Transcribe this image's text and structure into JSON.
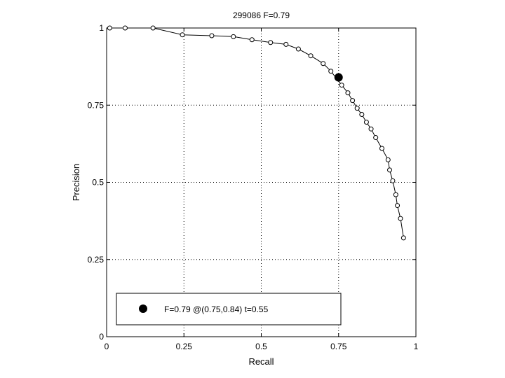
{
  "chart_data": {
    "type": "line",
    "title": "299086 F=0.79",
    "xlabel": "Recall",
    "ylabel": "Precision",
    "xlim": [
      0,
      1
    ],
    "ylim": [
      0,
      1
    ],
    "grid": true,
    "xticks": [
      0,
      0.25,
      0.5,
      0.75,
      1
    ],
    "yticks": [
      0,
      0.25,
      0.5,
      0.75,
      1
    ],
    "xtick_labels": [
      "0",
      "0.25",
      "0.5",
      "0.75",
      "1"
    ],
    "ytick_labels": [
      "0",
      "0.25",
      "0.5",
      "0.75",
      "1"
    ],
    "series": [
      {
        "x": [
          0.01,
          0.06,
          0.15,
          0.245,
          0.34,
          0.41,
          0.47,
          0.53,
          0.58,
          0.62,
          0.66,
          0.7,
          0.725,
          0.76,
          0.78,
          0.795,
          0.81,
          0.825,
          0.84,
          0.855,
          0.87,
          0.89,
          0.91,
          0.915,
          0.925,
          0.935,
          0.94,
          0.95,
          0.96
        ],
        "y": [
          1.0,
          1.0,
          1.0,
          0.978,
          0.975,
          0.972,
          0.962,
          0.953,
          0.947,
          0.932,
          0.91,
          0.885,
          0.86,
          0.815,
          0.79,
          0.765,
          0.74,
          0.72,
          0.695,
          0.673,
          0.645,
          0.61,
          0.573,
          0.54,
          0.505,
          0.46,
          0.425,
          0.383,
          0.32
        ]
      }
    ],
    "highlight_point": {
      "x": 0.75,
      "y": 0.84
    },
    "legend": {
      "text": "F=0.79 @(0.75,0.84) t=0.55",
      "position": "bottom-left"
    }
  }
}
